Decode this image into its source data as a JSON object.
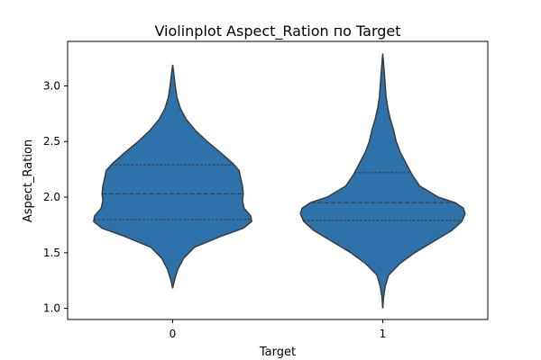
{
  "chart_data": {
    "type": "violin",
    "title": "Violinplot Aspect_Ration по Target",
    "xlabel": "Target",
    "ylabel": "Aspect_Ration",
    "categories": [
      "0",
      "1"
    ],
    "ylim": [
      0.9,
      3.4
    ],
    "yticks": [
      "1.0",
      "1.5",
      "2.0",
      "2.5",
      "3.0"
    ],
    "fill_color": "#2e72ab",
    "line_color": "#3b3b3b",
    "grid": false,
    "violins": [
      {
        "category": "0",
        "min": 1.18,
        "max": 3.19,
        "q1": 1.8,
        "median": 2.03,
        "q3": 2.29,
        "density": [
          [
            1.18,
            0.0
          ],
          [
            1.25,
            0.02
          ],
          [
            1.35,
            0.06
          ],
          [
            1.45,
            0.13
          ],
          [
            1.55,
            0.26
          ],
          [
            1.65,
            0.58
          ],
          [
            1.72,
            0.84
          ],
          [
            1.78,
            0.94
          ],
          [
            1.83,
            0.93
          ],
          [
            1.9,
            0.85
          ],
          [
            1.97,
            0.83
          ],
          [
            2.03,
            0.84
          ],
          [
            2.1,
            0.83
          ],
          [
            2.17,
            0.81
          ],
          [
            2.24,
            0.79
          ],
          [
            2.3,
            0.72
          ],
          [
            2.4,
            0.57
          ],
          [
            2.5,
            0.41
          ],
          [
            2.6,
            0.27
          ],
          [
            2.7,
            0.16
          ],
          [
            2.8,
            0.09
          ],
          [
            2.9,
            0.05
          ],
          [
            3.0,
            0.03
          ],
          [
            3.1,
            0.015
          ],
          [
            3.19,
            0.0
          ]
        ]
      },
      {
        "category": "1",
        "min": 1.0,
        "max": 3.29,
        "q1": 1.79,
        "median": 1.95,
        "q3": 2.22,
        "density": [
          [
            1.0,
            0.0
          ],
          [
            1.1,
            0.01
          ],
          [
            1.2,
            0.03
          ],
          [
            1.3,
            0.07
          ],
          [
            1.4,
            0.2
          ],
          [
            1.5,
            0.38
          ],
          [
            1.6,
            0.6
          ],
          [
            1.7,
            0.82
          ],
          [
            1.78,
            0.94
          ],
          [
            1.85,
            0.98
          ],
          [
            1.9,
            0.96
          ],
          [
            1.95,
            0.86
          ],
          [
            2.0,
            0.66
          ],
          [
            2.1,
            0.44
          ],
          [
            2.2,
            0.35
          ],
          [
            2.3,
            0.28
          ],
          [
            2.4,
            0.21
          ],
          [
            2.5,
            0.16
          ],
          [
            2.6,
            0.13
          ],
          [
            2.7,
            0.09
          ],
          [
            2.8,
            0.06
          ],
          [
            2.9,
            0.04
          ],
          [
            3.0,
            0.03
          ],
          [
            3.1,
            0.02
          ],
          [
            3.2,
            0.01
          ],
          [
            3.29,
            0.0
          ]
        ]
      }
    ]
  }
}
